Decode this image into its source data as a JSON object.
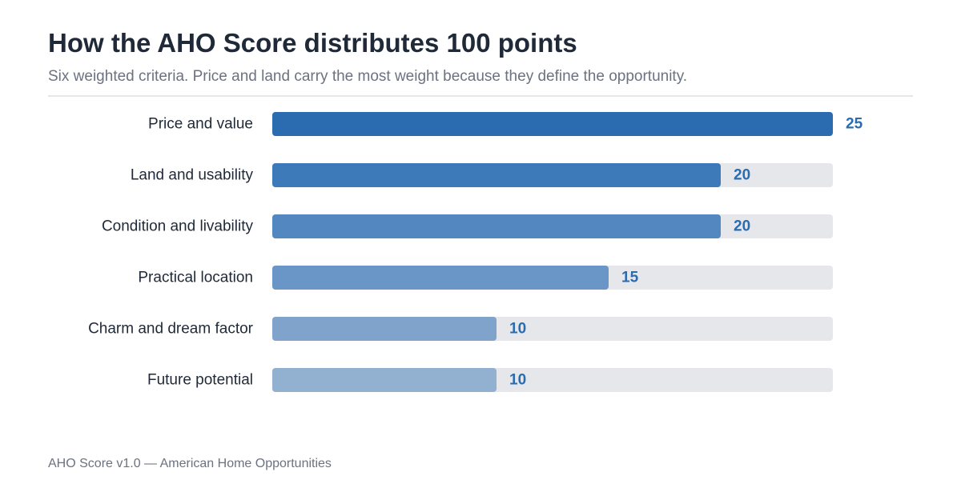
{
  "header": {
    "title": "How the AHO Score distributes 100 points",
    "subtitle": "Six weighted criteria. Price and land carry the most weight because they define the opportunity."
  },
  "footer": {
    "text": "AHO Score v1.0 — American Home Opportunities"
  },
  "chart_data": {
    "type": "bar",
    "orientation": "horizontal",
    "categories": [
      "Price and value",
      "Land and usability",
      "Condition and livability",
      "Practical location",
      "Charm and dream factor",
      "Future potential"
    ],
    "values": [
      25,
      20,
      20,
      15,
      10,
      10
    ],
    "xlim": [
      0,
      25
    ],
    "title": "How the AHO Score distributes 100 points",
    "subtitle": "Six weighted criteria. Price and land carry the most weight because they define the opportunity.",
    "xlabel": "",
    "ylabel": "",
    "grid": false,
    "legend": "none",
    "colors": {
      "bars": [
        "#2b6cb0",
        "#3d7aba",
        "#5287c0",
        "#6a96c7",
        "#80a3cc",
        "#92b0d0"
      ],
      "track": "#e5e7eb",
      "value_text": "#2b6cb0",
      "category_text": "#1f2937"
    }
  }
}
